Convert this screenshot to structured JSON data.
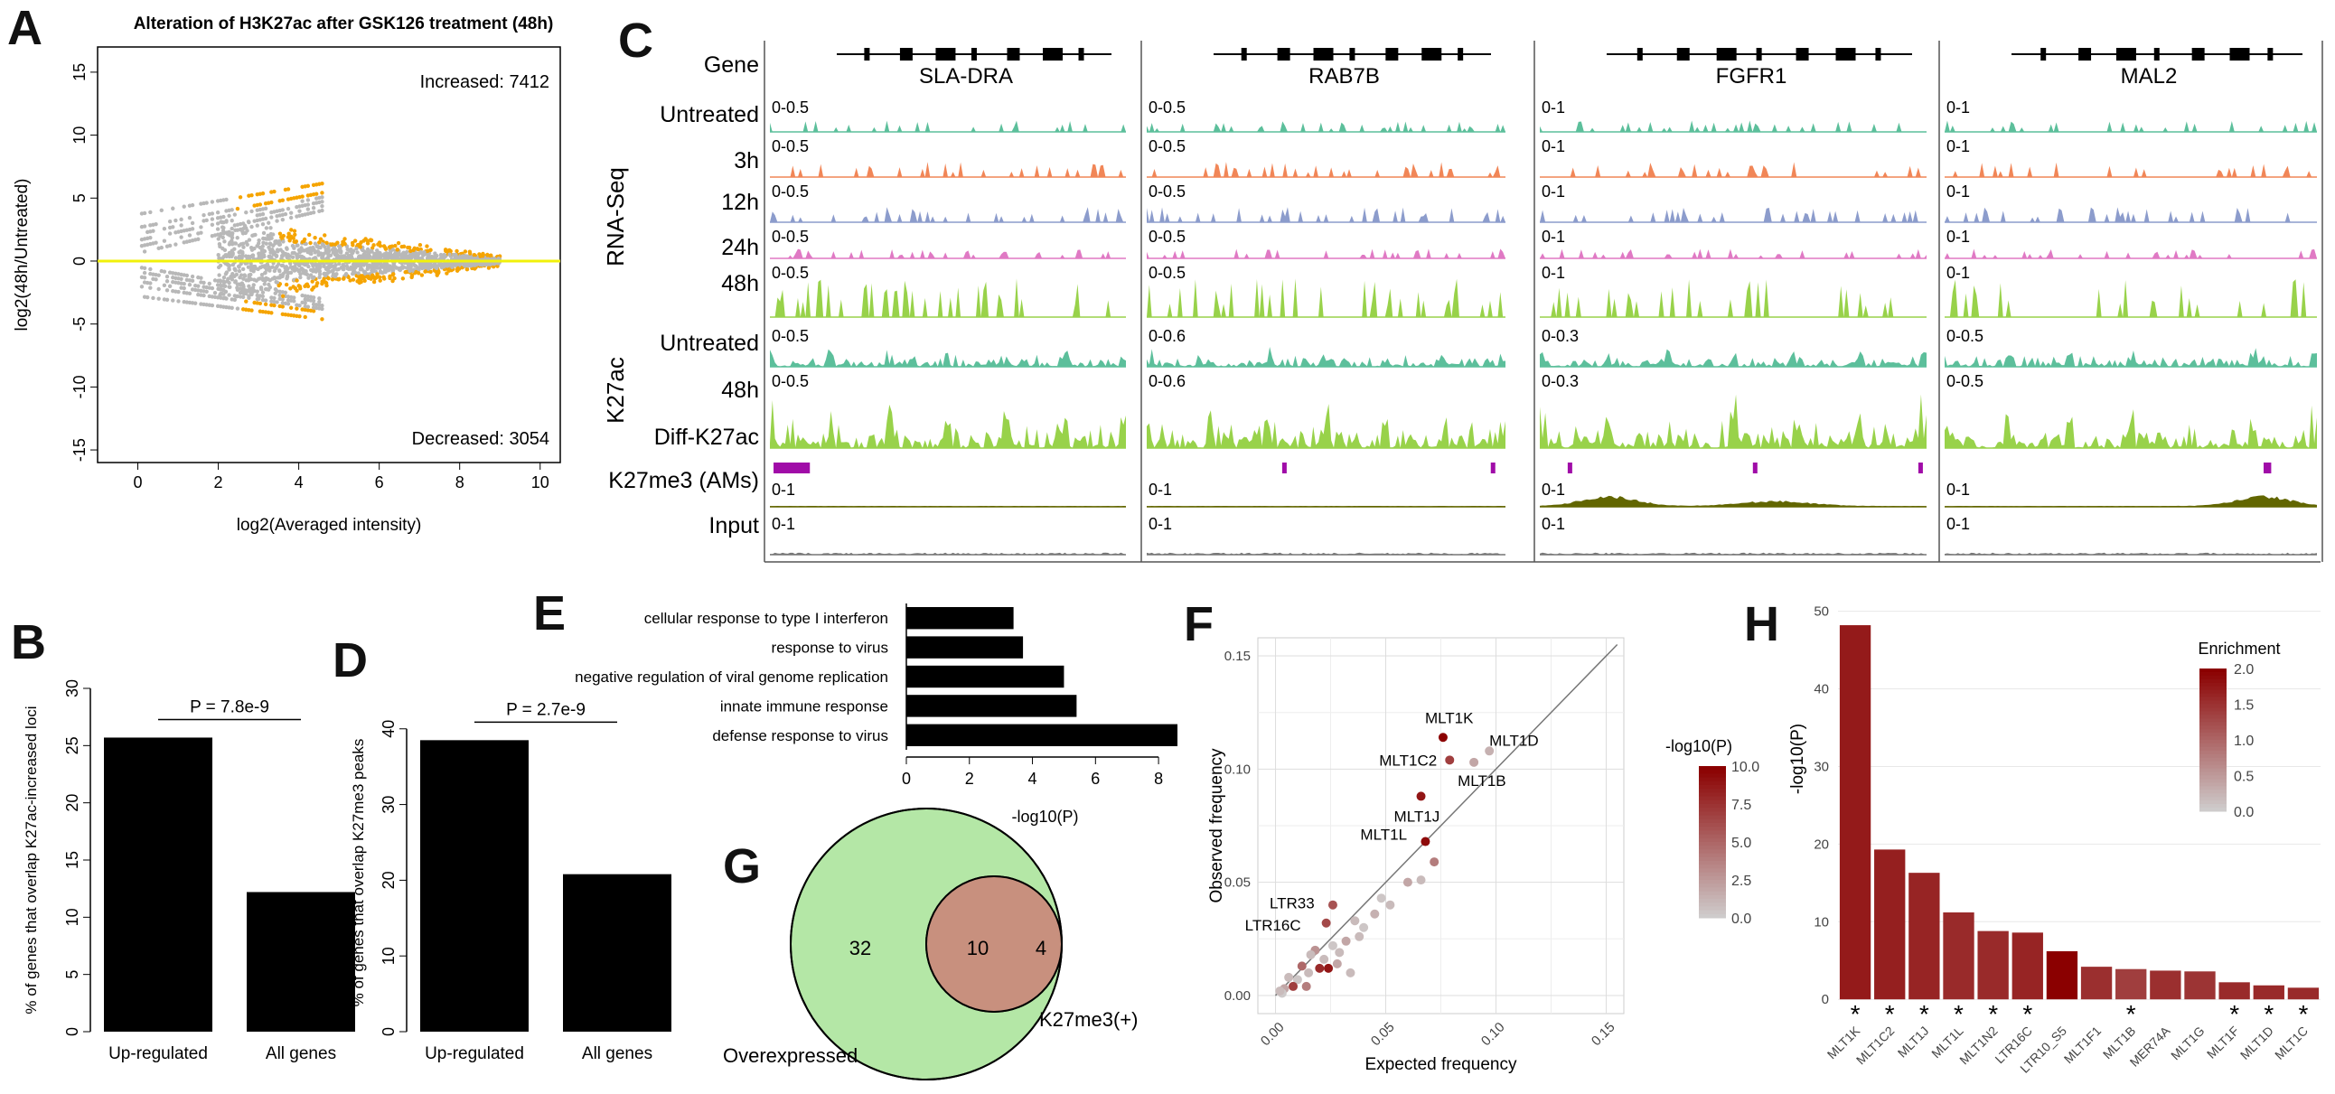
{
  "panels": {
    "A": "A",
    "B": "B",
    "C": "C",
    "D": "D",
    "E": "E",
    "F": "F",
    "G": "G",
    "H": "H"
  },
  "colors": {
    "orange": "#f5a400",
    "gray": "#b8b8b8",
    "yellow": "#f1f10a",
    "bar": "#000000",
    "green_venn": "#b4e7a6",
    "pink_venn": "#ee9fb0",
    "overlap_venn": "#c8907e",
    "untreated": "#5cbf9b",
    "h3": "#f18657",
    "h12": "#8c9ccc",
    "h24": "#e079c4",
    "h48": "#98d24a",
    "diff": "#a00ca8",
    "k27me3": "#626600",
    "input": "#777777",
    "dark_red": "#8b0000"
  },
  "chart_data": [
    {
      "id": "A",
      "type": "scatter",
      "title": "Alteration of H3K27ac after GSK126 treatment (48h)",
      "xlabel": "log2(Averaged intensity)",
      "ylabel": "log2(48h/Untreated)",
      "xlim": [
        -1,
        10.5
      ],
      "ylim": [
        -16,
        17
      ],
      "xticks": [
        0,
        2,
        4,
        6,
        8,
        10
      ],
      "yticks": [
        -15,
        -10,
        -5,
        0,
        5,
        10,
        15
      ],
      "annotations": {
        "increased": "Increased: 7412",
        "decreased": "Decreased: 3054"
      },
      "series": [
        {
          "name": "not significant",
          "color": "#b8b8b8"
        },
        {
          "name": "significant",
          "color": "#f5a400"
        }
      ],
      "hline": 0
    },
    {
      "id": "B",
      "type": "bar",
      "categories": [
        "Up-regulated",
        "All genes"
      ],
      "values": [
        25.7,
        12.2
      ],
      "ylabel": "% of genes that overlap K27ac-increased loci",
      "ylim": [
        0,
        30
      ],
      "yticks": [
        0,
        5,
        10,
        15,
        20,
        25,
        30
      ],
      "pvalue": "P = 7.8e-9"
    },
    {
      "id": "D",
      "type": "bar",
      "categories": [
        "Up-regulated",
        "All genes"
      ],
      "values": [
        38.5,
        20.8
      ],
      "ylabel": "% of genes that overlap K27me3 peaks",
      "ylim": [
        0,
        42
      ],
      "yticks": [
        0,
        10,
        20,
        30,
        40
      ],
      "pvalue": "P = 2.7e-9"
    },
    {
      "id": "E",
      "type": "bar",
      "orientation": "horizontal",
      "categories": [
        "cellular response to type I interferon",
        "response to virus",
        "negative regulation of viral genome replication",
        "innate immune response",
        "defense response to virus"
      ],
      "values": [
        3.4,
        3.7,
        5.0,
        5.4,
        8.6
      ],
      "xlabel": "-log10(P)",
      "xlim": [
        0,
        8.8
      ],
      "xticks": [
        0,
        2,
        4,
        6,
        8
      ]
    },
    {
      "id": "F",
      "type": "scatter",
      "xlabel": "Expected frequency",
      "ylabel": "Observed frequency",
      "xlim": [
        -0.008,
        0.158
      ],
      "ylim": [
        -0.008,
        0.158
      ],
      "xticks": [
        0.0,
        0.05,
        0.1,
        0.15
      ],
      "xticklabels": [
        "0.00",
        "0.05",
        "0.10",
        "0.15"
      ],
      "yticks": [
        0.0,
        0.05,
        0.1,
        0.15
      ],
      "yticklabels": [
        "0.00",
        "0.05",
        "0.10",
        "0.15"
      ],
      "legend": {
        "title": "-log10(P)",
        "range": [
          0,
          10
        ],
        "ticks": [
          "10.0",
          "7.5",
          "5.0",
          "2.5",
          "0.0"
        ]
      },
      "points": [
        {
          "x": 0.076,
          "y": 0.114,
          "p": 10,
          "label": "MLT1K"
        },
        {
          "x": 0.097,
          "y": 0.108,
          "p": 1.5,
          "label": "MLT1D"
        },
        {
          "x": 0.079,
          "y": 0.104,
          "p": 7,
          "label": "MLT1C2"
        },
        {
          "x": 0.09,
          "y": 0.103,
          "p": 2,
          "label": "MLT1B"
        },
        {
          "x": 0.066,
          "y": 0.088,
          "p": 9,
          "label": "MLT1J"
        },
        {
          "x": 0.068,
          "y": 0.068,
          "p": 9.5,
          "label": "MLT1L"
        },
        {
          "x": 0.026,
          "y": 0.04,
          "p": 6,
          "label": "LTR33"
        },
        {
          "x": 0.023,
          "y": 0.032,
          "p": 6.5,
          "label": "LTR16C"
        },
        {
          "x": 0.072,
          "y": 0.059,
          "p": 4,
          "label": ""
        },
        {
          "x": 0.066,
          "y": 0.051,
          "p": 1,
          "label": ""
        },
        {
          "x": 0.06,
          "y": 0.05,
          "p": 2,
          "label": ""
        },
        {
          "x": 0.052,
          "y": 0.04,
          "p": 1,
          "label": ""
        },
        {
          "x": 0.048,
          "y": 0.043,
          "p": 0.5,
          "label": ""
        },
        {
          "x": 0.045,
          "y": 0.036,
          "p": 1.5,
          "label": ""
        },
        {
          "x": 0.04,
          "y": 0.03,
          "p": 0.5,
          "label": ""
        },
        {
          "x": 0.036,
          "y": 0.033,
          "p": 1,
          "label": ""
        },
        {
          "x": 0.032,
          "y": 0.024,
          "p": 2,
          "label": ""
        },
        {
          "x": 0.029,
          "y": 0.019,
          "p": 1,
          "label": ""
        },
        {
          "x": 0.026,
          "y": 0.022,
          "p": 0.5,
          "label": ""
        },
        {
          "x": 0.022,
          "y": 0.016,
          "p": 1,
          "label": ""
        },
        {
          "x": 0.02,
          "y": 0.012,
          "p": 8,
          "label": ""
        },
        {
          "x": 0.018,
          "y": 0.02,
          "p": 3,
          "label": ""
        },
        {
          "x": 0.015,
          "y": 0.01,
          "p": 1,
          "label": ""
        },
        {
          "x": 0.012,
          "y": 0.013,
          "p": 5,
          "label": ""
        },
        {
          "x": 0.01,
          "y": 0.007,
          "p": 0.5,
          "label": ""
        },
        {
          "x": 0.008,
          "y": 0.004,
          "p": 7,
          "label": ""
        },
        {
          "x": 0.006,
          "y": 0.008,
          "p": 1,
          "label": ""
        },
        {
          "x": 0.004,
          "y": 0.003,
          "p": 2,
          "label": ""
        },
        {
          "x": 0.003,
          "y": 0.001,
          "p": 0.3,
          "label": ""
        },
        {
          "x": 0.002,
          "y": 0.002,
          "p": 1,
          "label": ""
        },
        {
          "x": 0.014,
          "y": 0.004,
          "p": 4,
          "label": ""
        },
        {
          "x": 0.024,
          "y": 0.012,
          "p": 9,
          "label": ""
        },
        {
          "x": 0.034,
          "y": 0.01,
          "p": 1,
          "label": ""
        },
        {
          "x": 0.038,
          "y": 0.026,
          "p": 1,
          "label": ""
        },
        {
          "x": 0.028,
          "y": 0.014,
          "p": 2,
          "label": ""
        },
        {
          "x": 0.016,
          "y": 0.018,
          "p": 1,
          "label": ""
        }
      ]
    },
    {
      "id": "H",
      "type": "bar",
      "categories": [
        "MLT1K",
        "MLT1C2",
        "MLT1J",
        "MLT1L",
        "MLT1N2",
        "LTR16C",
        "LTR10_S5",
        "MLT1F1",
        "MLT1B",
        "MER74A",
        "MLT1G",
        "MLT1F",
        "MLT1D",
        "MLT1C"
      ],
      "values": [
        48.2,
        19.3,
        16.3,
        11.2,
        8.8,
        8.6,
        6.2,
        4.2,
        3.9,
        3.7,
        3.6,
        2.2,
        1.8,
        1.5
      ],
      "enrichment": [
        1.75,
        1.7,
        1.65,
        1.6,
        1.6,
        1.65,
        2.0,
        1.55,
        1.4,
        1.55,
        1.5,
        1.6,
        1.6,
        1.6
      ],
      "significant": [
        true,
        true,
        true,
        true,
        true,
        true,
        false,
        false,
        true,
        false,
        false,
        true,
        true,
        true
      ],
      "star": "*",
      "ylabel": "-log10(P)",
      "ylim": [
        -3,
        51
      ],
      "yticks": [
        0,
        10,
        20,
        30,
        40,
        50
      ],
      "legend": {
        "title": "Enrichment",
        "range": [
          0,
          2
        ],
        "ticks": [
          "2.0",
          "1.5",
          "1.0",
          "0.5",
          "0.0"
        ]
      }
    }
  ],
  "browser": {
    "genes": [
      "SLA-DRA",
      "RAB7B",
      "FGFR1",
      "MAL2"
    ],
    "gene_row_label": "Gene",
    "group_labels": {
      "rnaseq": "RNA-Seq",
      "k27ac": "K27ac"
    },
    "tracks": [
      {
        "label": "Untreated",
        "color": "#5cbf9b",
        "scales": [
          "0-0.5",
          "0-0.5",
          "0-1",
          "0-1"
        ],
        "kind": "rna"
      },
      {
        "label": "3h",
        "color": "#f18657",
        "scales": [
          "0-0.5",
          "0-0.5",
          "0-1",
          "0-1"
        ],
        "kind": "rna"
      },
      {
        "label": "12h",
        "color": "#8c9ccc",
        "scales": [
          "0-0.5",
          "0-0.5",
          "0-1",
          "0-1"
        ],
        "kind": "rna"
      },
      {
        "label": "24h",
        "color": "#e079c4",
        "scales": [
          "0-0.5",
          "0-0.5",
          "0-1",
          "0-1"
        ],
        "kind": "rna"
      },
      {
        "label": "48h",
        "color": "#98d24a",
        "scales": [
          "0-0.5",
          "0-0.5",
          "0-1",
          "0-1"
        ],
        "kind": "rna"
      },
      {
        "label": "Untreated",
        "color": "#5cbf9b",
        "scales": [
          "0-0.5",
          "0-0.6",
          "0-0.3",
          "0-0.5"
        ],
        "kind": "chip"
      },
      {
        "label": "48h",
        "color": "#98d24a",
        "scales": [
          "0-0.5",
          "0-0.6",
          "0-0.3",
          "0-0.5"
        ],
        "kind": "chip"
      },
      {
        "label": "Diff-K27ac",
        "color": "#a00ca8",
        "scales": [
          "",
          "",
          "",
          ""
        ],
        "kind": "diff"
      },
      {
        "label": "K27me3 (AMs)",
        "color": "#626600",
        "scales": [
          "0-1",
          "0-1",
          "0-1",
          "0-1"
        ],
        "kind": "me3"
      },
      {
        "label": "Input",
        "color": "#777777",
        "scales": [
          "0-1",
          "0-1",
          "0-1",
          "0-1"
        ],
        "kind": "input"
      }
    ]
  },
  "venn": {
    "left_label": "Overexpressed",
    "right_label": "K27me3(+)",
    "left_only": "32",
    "overlap": "10",
    "right_only": "4"
  }
}
